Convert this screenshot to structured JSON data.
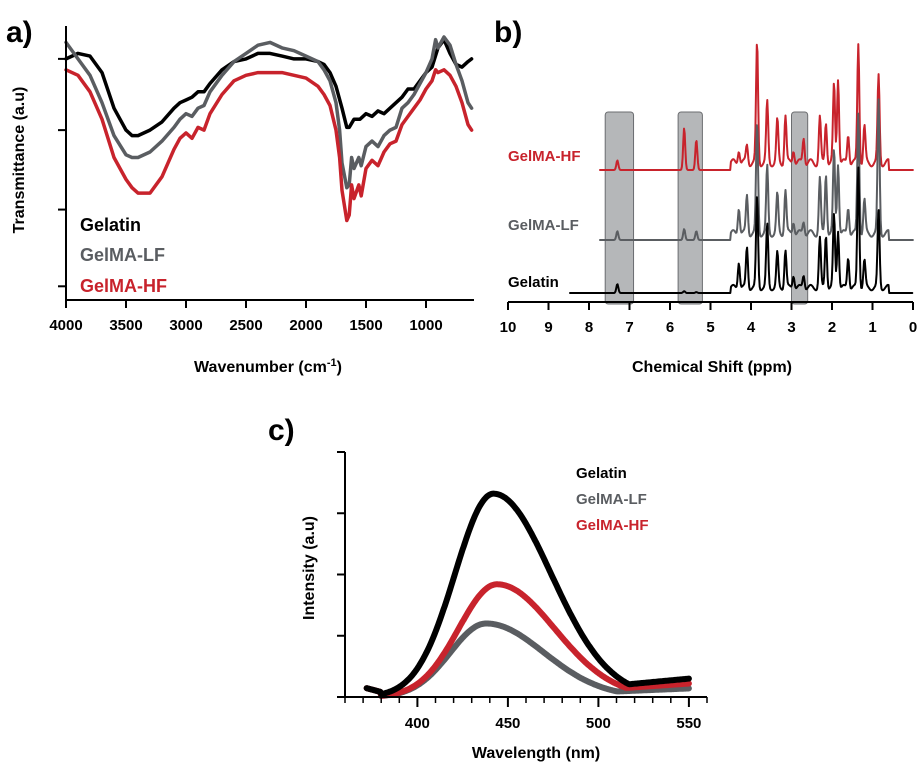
{
  "colors": {
    "gelatin": "#000000",
    "gelma_lf": "#5a5d61",
    "gelma_hf": "#c8232c",
    "highlight": "#a8aaad"
  },
  "chart_data": [
    {
      "panel": "a)",
      "type": "line",
      "xlabel": "Wavenumber (cm",
      "xlabel_sup": "-1",
      "xlabel_end": ")",
      "ylabel": "Transmittance (a.u)",
      "xlim": [
        4000,
        600
      ],
      "x_ticks": [
        "4000",
        "3500",
        "3000",
        "2500",
        "2000",
        "1500",
        "1000"
      ],
      "legend": [
        "Gelatin",
        "GelMA-LF",
        "GelMA-HF"
      ],
      "legend_placement": "bottom-left",
      "series": [
        {
          "name": "Gelatin",
          "color_key": "gelatin",
          "x": [
            4000,
            3900,
            3800,
            3700,
            3600,
            3500,
            3450,
            3400,
            3300,
            3200,
            3100,
            3050,
            3000,
            2950,
            2900,
            2850,
            2800,
            2700,
            2600,
            2500,
            2400,
            2300,
            2200,
            2100,
            2000,
            1900,
            1850,
            1800,
            1750,
            1700,
            1660,
            1640,
            1600,
            1550,
            1500,
            1450,
            1400,
            1350,
            1300,
            1250,
            1200,
            1150,
            1100,
            1050,
            1000,
            950,
            900,
            850,
            800,
            750,
            700,
            650,
            620
          ],
          "y": [
            0.88,
            0.9,
            0.89,
            0.83,
            0.7,
            0.62,
            0.6,
            0.6,
            0.62,
            0.65,
            0.7,
            0.72,
            0.73,
            0.74,
            0.76,
            0.76,
            0.79,
            0.84,
            0.87,
            0.88,
            0.9,
            0.9,
            0.89,
            0.88,
            0.88,
            0.87,
            0.86,
            0.83,
            0.78,
            0.7,
            0.63,
            0.63,
            0.66,
            0.66,
            0.68,
            0.67,
            0.69,
            0.68,
            0.7,
            0.72,
            0.74,
            0.77,
            0.77,
            0.8,
            0.83,
            0.85,
            0.92,
            0.95,
            0.9,
            0.86,
            0.85,
            0.87,
            0.88
          ]
        },
        {
          "name": "GelMA-LF",
          "color_key": "gelma_lf",
          "x": [
            4000,
            3900,
            3800,
            3700,
            3600,
            3500,
            3450,
            3400,
            3300,
            3200,
            3100,
            3050,
            3000,
            2950,
            2900,
            2850,
            2800,
            2700,
            2600,
            2500,
            2400,
            2300,
            2200,
            2100,
            2000,
            1900,
            1850,
            1800,
            1750,
            1720,
            1700,
            1660,
            1640,
            1620,
            1600,
            1560,
            1540,
            1500,
            1450,
            1400,
            1350,
            1300,
            1250,
            1200,
            1150,
            1100,
            1050,
            1000,
            950,
            920,
            900,
            850,
            800,
            750,
            700,
            650,
            620
          ],
          "y": [
            0.94,
            0.88,
            0.82,
            0.72,
            0.6,
            0.53,
            0.52,
            0.52,
            0.54,
            0.58,
            0.63,
            0.66,
            0.68,
            0.67,
            0.7,
            0.71,
            0.76,
            0.82,
            0.87,
            0.9,
            0.93,
            0.94,
            0.92,
            0.91,
            0.89,
            0.87,
            0.84,
            0.8,
            0.72,
            0.62,
            0.5,
            0.41,
            0.42,
            0.52,
            0.48,
            0.52,
            0.49,
            0.56,
            0.58,
            0.56,
            0.6,
            0.62,
            0.63,
            0.7,
            0.72,
            0.75,
            0.79,
            0.83,
            0.88,
            0.95,
            0.92,
            0.96,
            0.93,
            0.86,
            0.8,
            0.72,
            0.7
          ]
        },
        {
          "name": "GelMA-HF",
          "color_key": "gelma_hf",
          "x": [
            4000,
            3900,
            3800,
            3700,
            3600,
            3500,
            3450,
            3400,
            3300,
            3200,
            3100,
            3050,
            3000,
            2950,
            2900,
            2850,
            2800,
            2700,
            2600,
            2500,
            2400,
            2300,
            2200,
            2100,
            2000,
            1900,
            1850,
            1800,
            1750,
            1720,
            1700,
            1660,
            1640,
            1620,
            1600,
            1560,
            1540,
            1500,
            1450,
            1400,
            1350,
            1300,
            1250,
            1200,
            1150,
            1100,
            1050,
            1000,
            950,
            920,
            900,
            850,
            800,
            750,
            700,
            650,
            620
          ],
          "y": [
            0.84,
            0.82,
            0.76,
            0.66,
            0.52,
            0.44,
            0.41,
            0.39,
            0.39,
            0.45,
            0.55,
            0.59,
            0.61,
            0.59,
            0.63,
            0.62,
            0.68,
            0.75,
            0.8,
            0.82,
            0.83,
            0.83,
            0.83,
            0.82,
            0.81,
            0.78,
            0.75,
            0.71,
            0.62,
            0.52,
            0.4,
            0.29,
            0.31,
            0.42,
            0.37,
            0.42,
            0.38,
            0.48,
            0.51,
            0.49,
            0.54,
            0.57,
            0.58,
            0.64,
            0.67,
            0.7,
            0.73,
            0.77,
            0.8,
            0.84,
            0.83,
            0.84,
            0.82,
            0.78,
            0.72,
            0.64,
            0.62
          ]
        }
      ]
    },
    {
      "panel": "b)",
      "type": "line",
      "xlabel": "Chemical Shift (ppm)",
      "xlim": [
        10,
        0
      ],
      "x_ticks": [
        "10",
        "9",
        "8",
        "7",
        "6",
        "5",
        "4",
        "3",
        "2",
        "1",
        "0"
      ],
      "highlight_regions_ppm": [
        [
          7.6,
          6.9
        ],
        [
          5.8,
          5.2
        ],
        [
          3.0,
          2.6
        ]
      ],
      "series_labels": [
        "GelMA-HF",
        "GelMA-LF",
        "Gelatin"
      ],
      "peaks_ppm": [
        7.3,
        5.65,
        5.35,
        4.3,
        4.1,
        3.85,
        3.6,
        3.35,
        3.15,
        2.95,
        2.7,
        2.3,
        2.15,
        1.95,
        1.85,
        1.6,
        1.35,
        1.2,
        0.85
      ],
      "series": [
        {
          "name": "GelMA-HF",
          "color_key": "gelma_hf",
          "peak_heights": [
            0.08,
            0.35,
            0.25,
            0.12,
            0.15,
            1.0,
            0.5,
            0.35,
            0.4,
            0.12,
            0.22,
            0.38,
            0.35,
            0.65,
            0.72,
            0.25,
            1.0,
            0.3,
            0.72
          ]
        },
        {
          "name": "GelMA-LF",
          "color_key": "gelma_lf",
          "peak_heights": [
            0.08,
            0.1,
            0.08,
            0.25,
            0.35,
            1.0,
            0.6,
            0.35,
            0.4,
            0.12,
            0.12,
            0.5,
            0.55,
            0.75,
            0.65,
            0.25,
            1.1,
            0.3,
            1.2
          ]
        },
        {
          "name": "Gelatin",
          "color_key": "gelatin",
          "peak_heights": [
            0.1,
            0.02,
            0.01,
            0.3,
            0.45,
            1.0,
            0.7,
            0.38,
            0.42,
            0.15,
            0.15,
            0.55,
            0.6,
            0.8,
            0.65,
            0.35,
            1.35,
            0.3,
            0.85
          ]
        }
      ]
    },
    {
      "panel": "c)",
      "type": "scatter",
      "xlabel": "Wavelength (nm)",
      "ylabel": "Intensity (a.u)",
      "xlim": [
        360,
        560
      ],
      "ylim": [
        0,
        1
      ],
      "x_ticks": [
        "400",
        "450",
        "500",
        "550"
      ],
      "legend": [
        "Gelatin",
        "GelMA-LF",
        "GelMA-HF"
      ],
      "legend_placement": "top-right",
      "series": [
        {
          "name": "Gelatin",
          "color_key": "gelatin",
          "peak_x": 442,
          "peak_y": 0.83,
          "x_start": 372,
          "x_end": 550,
          "y_end": 0.075,
          "width_left": 30,
          "width_right": 45
        },
        {
          "name": "GelMA-LF",
          "color_key": "gelma_lf",
          "peak_x": 438,
          "peak_y": 0.3,
          "x_start": 372,
          "x_end": 550,
          "y_end": 0.035,
          "width_left": 28,
          "width_right": 45
        },
        {
          "name": "GelMA-HF",
          "color_key": "gelma_hf",
          "peak_x": 444,
          "peak_y": 0.46,
          "x_start": 372,
          "x_end": 550,
          "y_end": 0.055,
          "width_left": 30,
          "width_right": 45
        }
      ]
    }
  ]
}
